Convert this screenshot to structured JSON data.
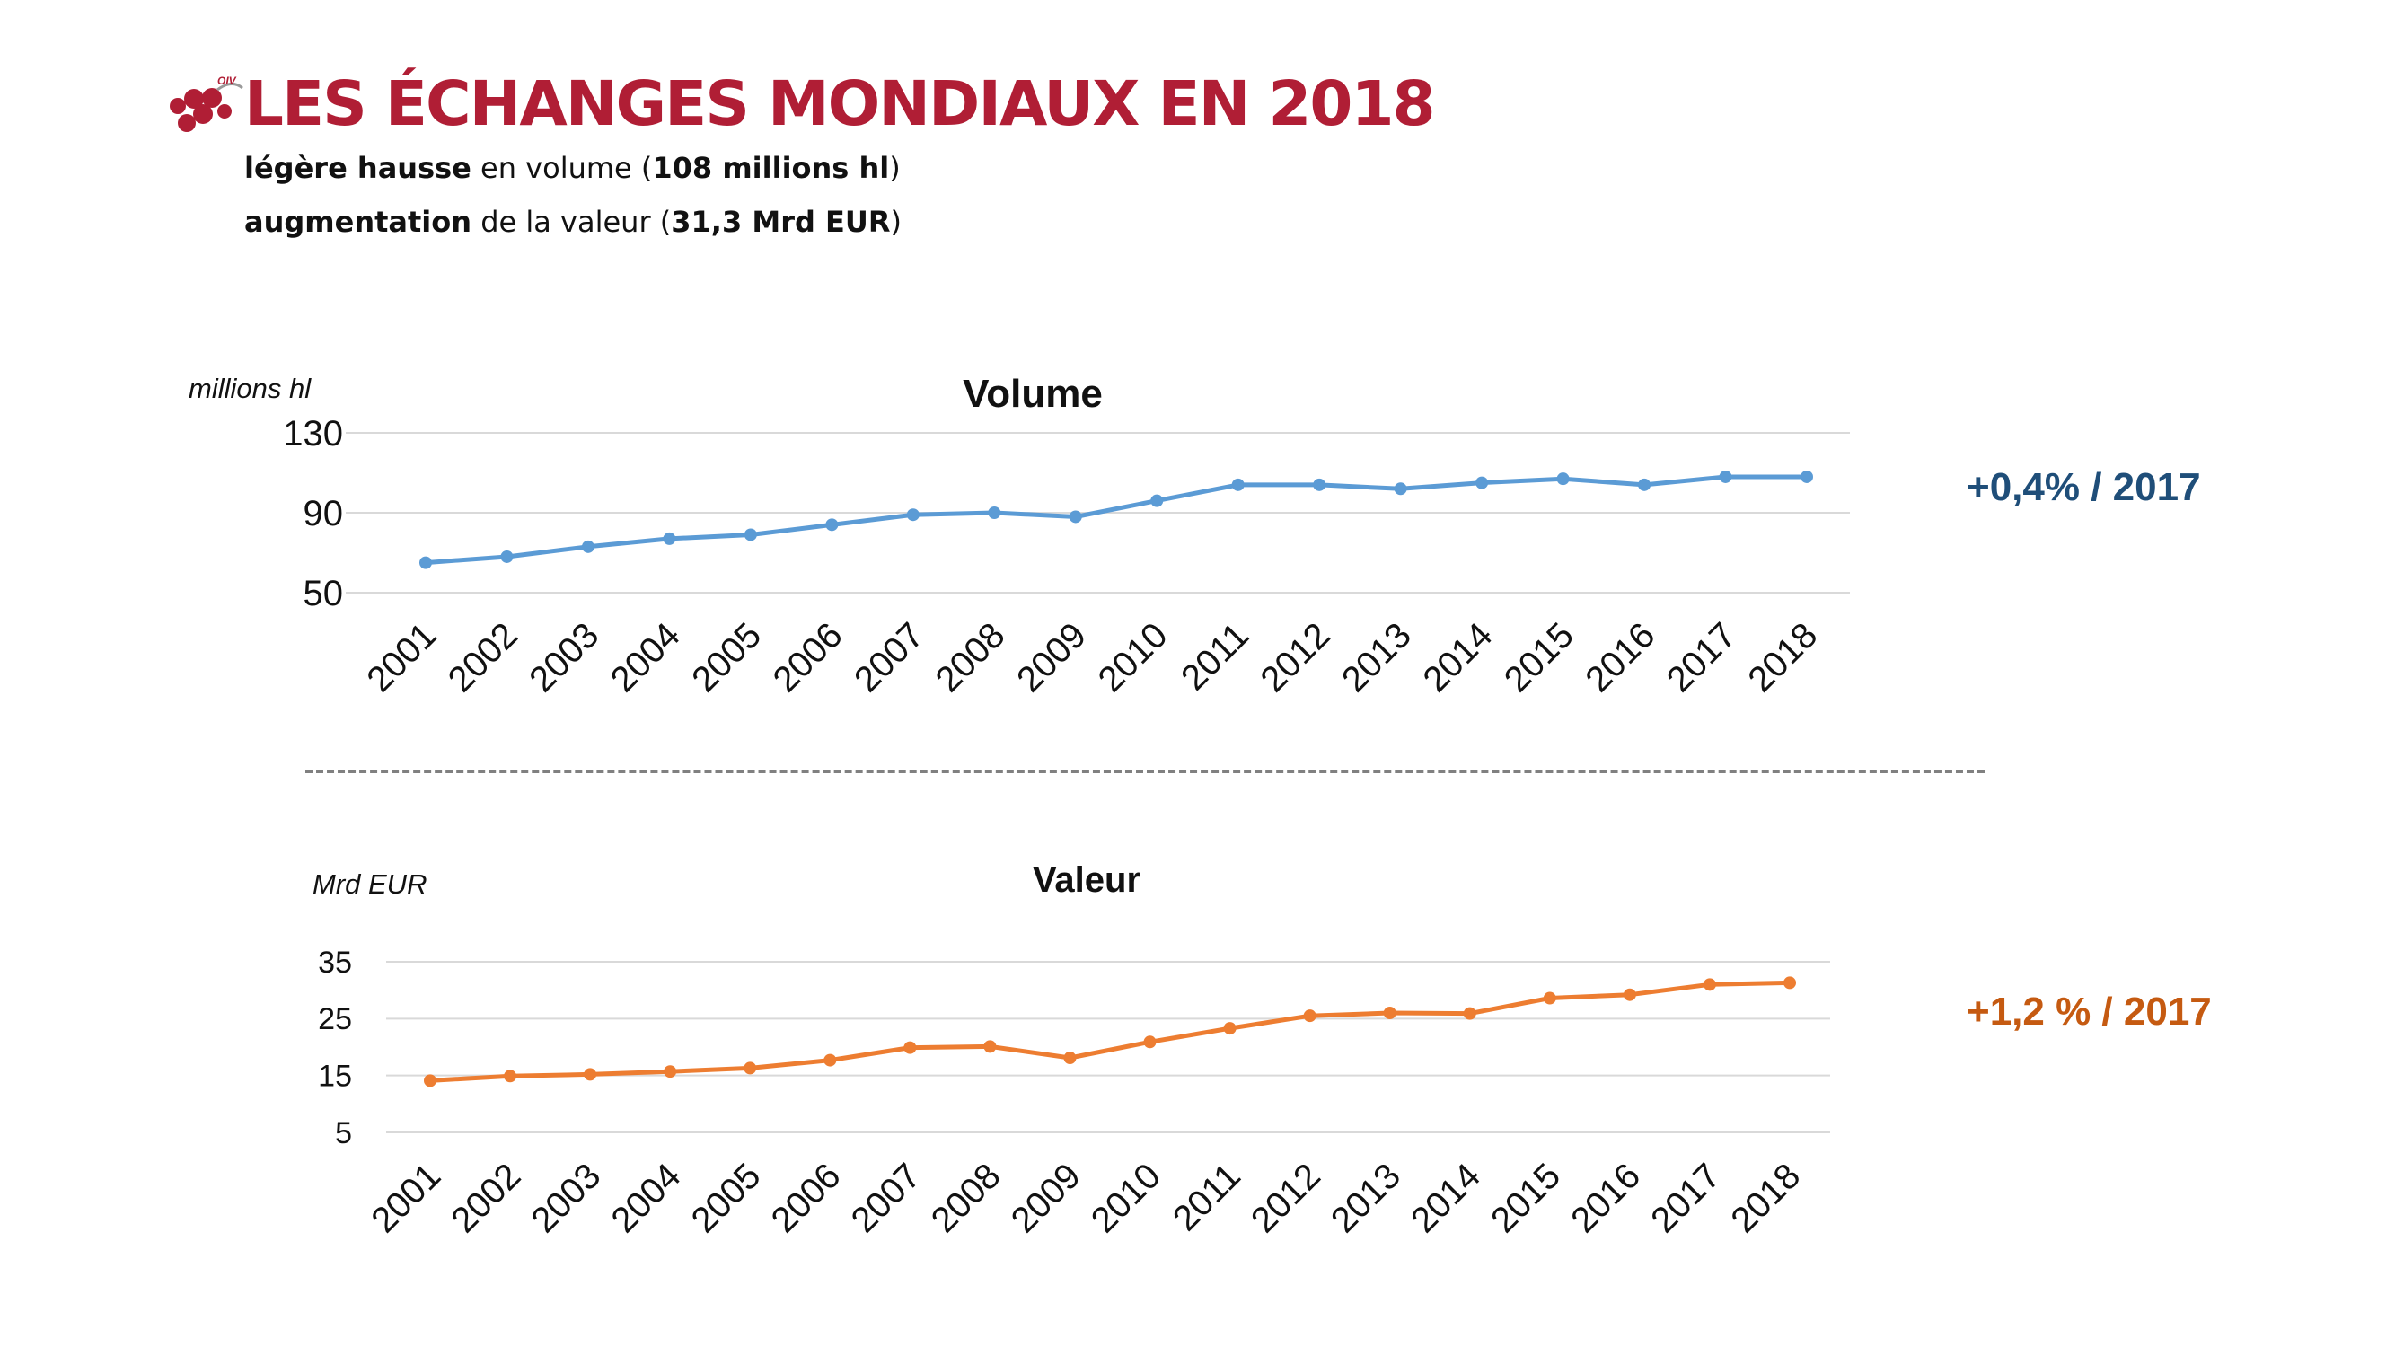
{
  "header": {
    "logo_text": "OIV",
    "title": "LES ÉCHANGES MONDIAUX EN 2018",
    "line1_bold": "légère hausse",
    "line1_rest": " en volume (",
    "line1_value": "108 millions hl",
    "line1_close": ")",
    "line2_bold": "augmentation",
    "line2_rest": " de la valeur (",
    "line2_value": "31,3 Mrd EUR",
    "line2_close": ")"
  },
  "changes": {
    "volume": "+0,4% / 2017",
    "valeur": "+1,2 % / 2017"
  },
  "colors": {
    "title": "#b01e35",
    "volume": "#5b9bd5",
    "valeur": "#ed7d31",
    "volume_change": "#1f4e79",
    "valeur_change": "#c55a11",
    "grid": "#d9d9d9"
  },
  "chart_data": [
    {
      "type": "line",
      "title": "Volume",
      "ylabel": "millions hl",
      "xlabel": "",
      "categories": [
        "2001",
        "2002",
        "2003",
        "2004",
        "2005",
        "2006",
        "2007",
        "2008",
        "2009",
        "2010",
        "2011",
        "2012",
        "2013",
        "2014",
        "2015",
        "2016",
        "2017",
        "2018"
      ],
      "series": [
        {
          "name": "Volume",
          "values": [
            65,
            68,
            73,
            77,
            79,
            84,
            89,
            90,
            88,
            96,
            104,
            104,
            102,
            105,
            107,
            104,
            108,
            108
          ]
        }
      ],
      "yticks": [
        50,
        90,
        130
      ],
      "ylim": [
        50,
        130
      ],
      "grid": true
    },
    {
      "type": "line",
      "title": "Valeur",
      "ylabel": "Mrd EUR",
      "xlabel": "",
      "categories": [
        "2001",
        "2002",
        "2003",
        "2004",
        "2005",
        "2006",
        "2007",
        "2008",
        "2009",
        "2010",
        "2011",
        "2012",
        "2013",
        "2014",
        "2015",
        "2016",
        "2017",
        "2018"
      ],
      "series": [
        {
          "name": "Valeur",
          "values": [
            14.1,
            14.9,
            15.2,
            15.7,
            16.3,
            17.7,
            19.9,
            20.1,
            18.1,
            20.9,
            23.3,
            25.5,
            26.0,
            25.9,
            28.6,
            29.2,
            31.0,
            31.3
          ]
        }
      ],
      "yticks": [
        5,
        15,
        25,
        35
      ],
      "ylim": [
        5,
        35
      ],
      "grid": true
    }
  ]
}
